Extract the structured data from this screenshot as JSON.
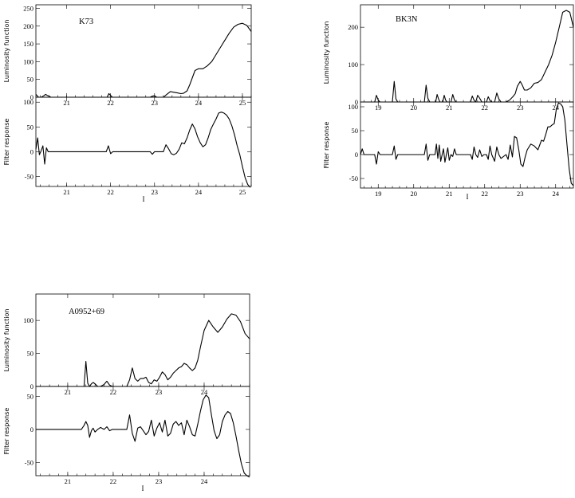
{
  "chart_data": [
    {
      "type": "line",
      "title": "K73",
      "top": {
        "ylabel": "Luminosity function",
        "xlim": [
          20.3,
          25.2
        ],
        "ylim": [
          0,
          260
        ],
        "xticks": [
          21,
          22,
          23,
          24,
          25
        ],
        "yticks": [
          0,
          50,
          100,
          150,
          200,
          250
        ],
        "x": [
          20.3,
          20.36,
          20.42,
          20.48,
          20.52,
          20.56,
          20.6,
          20.64,
          20.68,
          21.92,
          21.96,
          22.0,
          22.04,
          22.9,
          22.95,
          23.0,
          23.05,
          23.2,
          23.28,
          23.36,
          23.44,
          23.52,
          23.6,
          23.66,
          23.74,
          23.8,
          23.86,
          23.92,
          24.0,
          24.1,
          24.2,
          24.3,
          24.4,
          24.5,
          24.6,
          24.7,
          24.8,
          24.9,
          25.0,
          25.1,
          25.2
        ],
        "y": [
          8,
          0,
          0,
          4,
          8,
          5,
          3,
          0,
          0,
          0,
          10,
          5,
          0,
          0,
          3,
          4,
          0,
          0,
          8,
          16,
          14,
          12,
          10,
          11,
          18,
          35,
          55,
          75,
          80,
          80,
          88,
          100,
          120,
          140,
          160,
          180,
          197,
          205,
          208,
          202,
          185
        ]
      },
      "bottom": {
        "ylabel": "Filter response",
        "xlabel": "I",
        "xlim": [
          20.3,
          25.2
        ],
        "ylim": [
          -70,
          110
        ],
        "xticks": [
          21,
          22,
          23,
          24,
          25
        ],
        "yticks": [
          -50,
          0,
          50,
          100
        ],
        "x": [
          20.3,
          20.34,
          20.38,
          20.42,
          20.46,
          20.5,
          20.54,
          20.58,
          20.62,
          21.9,
          21.95,
          22.0,
          22.05,
          22.9,
          22.95,
          23.0,
          23.1,
          23.2,
          23.26,
          23.32,
          23.38,
          23.44,
          23.5,
          23.56,
          23.62,
          23.68,
          23.74,
          23.8,
          23.86,
          23.92,
          23.98,
          24.04,
          24.1,
          24.16,
          24.22,
          24.28,
          24.34,
          24.4,
          24.46,
          24.52,
          24.58,
          24.64,
          24.7,
          24.76,
          24.82,
          24.88,
          24.94,
          25.0,
          25.06,
          25.12,
          25.18
        ],
        "y": [
          5,
          28,
          -6,
          2,
          12,
          -25,
          8,
          0,
          0,
          0,
          12,
          -4,
          0,
          0,
          -5,
          0,
          0,
          0,
          14,
          6,
          -4,
          -6,
          -3,
          5,
          18,
          16,
          28,
          44,
          56,
          46,
          30,
          18,
          10,
          14,
          28,
          45,
          56,
          66,
          78,
          80,
          78,
          74,
          66,
          52,
          34,
          12,
          -6,
          -30,
          -52,
          -66,
          -72
        ]
      }
    },
    {
      "type": "line",
      "title": "BK3N",
      "top": {
        "ylabel": "Luminosity function",
        "xlim": [
          18.5,
          24.5
        ],
        "ylim": [
          0,
          260
        ],
        "xticks": [
          19,
          20,
          21,
          22,
          23,
          24
        ],
        "yticks": [
          0,
          100,
          200
        ],
        "x": [
          18.5,
          18.9,
          18.95,
          19.0,
          19.05,
          19.4,
          19.45,
          19.5,
          19.55,
          20.3,
          20.35,
          20.4,
          20.45,
          20.62,
          20.66,
          20.7,
          20.74,
          20.82,
          20.86,
          20.9,
          20.94,
          21.05,
          21.1,
          21.15,
          21.2,
          21.6,
          21.65,
          21.7,
          21.75,
          21.8,
          21.86,
          21.92,
          21.98,
          22.05,
          22.1,
          22.15,
          22.2,
          22.28,
          22.34,
          22.4,
          22.46,
          22.6,
          22.7,
          22.8,
          22.86,
          22.92,
          23.0,
          23.06,
          23.12,
          23.2,
          23.3,
          23.4,
          23.5,
          23.6,
          23.7,
          23.8,
          23.9,
          24.0,
          24.1,
          24.2,
          24.3,
          24.4,
          24.5
        ],
        "y": [
          0,
          0,
          18,
          5,
          0,
          0,
          55,
          8,
          0,
          0,
          45,
          10,
          0,
          0,
          20,
          8,
          0,
          0,
          18,
          5,
          0,
          0,
          20,
          5,
          0,
          0,
          16,
          5,
          0,
          18,
          10,
          0,
          0,
          0,
          14,
          4,
          0,
          0,
          24,
          8,
          0,
          0,
          5,
          15,
          22,
          42,
          55,
          45,
          32,
          32,
          38,
          50,
          52,
          60,
          80,
          100,
          125,
          160,
          200,
          240,
          245,
          240,
          200
        ]
      },
      "bottom": {
        "ylabel": "Filter response",
        "xlabel": "I",
        "xlim": [
          18.5,
          24.5
        ],
        "ylim": [
          -70,
          110
        ],
        "xticks": [
          19,
          20,
          21,
          22,
          23,
          24
        ],
        "yticks": [
          -50,
          0,
          50,
          100
        ],
        "x": [
          18.5,
          18.55,
          18.6,
          18.65,
          18.9,
          18.95,
          19.0,
          19.05,
          19.4,
          19.45,
          19.5,
          19.55,
          20.3,
          20.35,
          20.4,
          20.45,
          20.6,
          20.64,
          20.68,
          20.72,
          20.76,
          20.8,
          20.84,
          20.88,
          20.92,
          20.96,
          21.0,
          21.05,
          21.1,
          21.15,
          21.2,
          21.6,
          21.65,
          21.7,
          21.75,
          21.8,
          21.86,
          21.92,
          21.98,
          22.05,
          22.1,
          22.15,
          22.2,
          22.28,
          22.34,
          22.4,
          22.46,
          22.6,
          22.66,
          22.72,
          22.78,
          22.84,
          22.9,
          22.96,
          23.02,
          23.08,
          23.14,
          23.2,
          23.3,
          23.4,
          23.5,
          23.6,
          23.66,
          23.72,
          23.78,
          23.84,
          23.9,
          23.96,
          24.02,
          24.08,
          24.14,
          24.2,
          24.26,
          24.32,
          24.38,
          24.44,
          24.5
        ],
        "y": [
          0,
          12,
          0,
          0,
          0,
          -20,
          6,
          0,
          0,
          18,
          -10,
          0,
          0,
          22,
          -12,
          0,
          0,
          22,
          -8,
          20,
          -14,
          0,
          12,
          -16,
          0,
          14,
          -12,
          0,
          -4,
          12,
          0,
          0,
          -10,
          16,
          0,
          -6,
          10,
          -4,
          0,
          0,
          -10,
          18,
          0,
          -14,
          16,
          0,
          -8,
          0,
          -10,
          20,
          -5,
          38,
          35,
          10,
          -20,
          -25,
          -5,
          10,
          22,
          18,
          10,
          30,
          28,
          42,
          58,
          58,
          62,
          65,
          95,
          108,
          106,
          100,
          72,
          20,
          -30,
          -60,
          -65
        ]
      }
    },
    {
      "type": "line",
      "title": "A0952+69",
      "top": {
        "ylabel": "Luminosity function",
        "xlim": [
          20.3,
          25.0
        ],
        "ylim": [
          0,
          140
        ],
        "xticks": [
          21,
          22,
          23,
          24
        ],
        "yticks": [
          0,
          50,
          100
        ],
        "x": [
          20.3,
          21.36,
          21.4,
          21.44,
          21.48,
          21.52,
          21.56,
          21.6,
          21.66,
          21.72,
          21.8,
          21.86,
          21.92,
          21.98,
          22.3,
          22.36,
          22.42,
          22.48,
          22.54,
          22.6,
          22.66,
          22.72,
          22.78,
          22.84,
          22.9,
          22.96,
          23.02,
          23.08,
          23.14,
          23.2,
          23.26,
          23.32,
          23.38,
          23.44,
          23.5,
          23.56,
          23.62,
          23.68,
          23.74,
          23.8,
          23.86,
          23.92,
          24.0,
          24.1,
          24.2,
          24.3,
          24.4,
          24.5,
          24.6,
          24.7,
          24.8,
          24.9,
          25.0
        ],
        "y": [
          0,
          0,
          38,
          5,
          0,
          4,
          6,
          4,
          0,
          0,
          3,
          8,
          2,
          0,
          0,
          10,
          28,
          12,
          8,
          12,
          12,
          14,
          6,
          4,
          10,
          8,
          14,
          22,
          18,
          10,
          14,
          20,
          24,
          28,
          30,
          35,
          33,
          28,
          24,
          28,
          40,
          60,
          85,
          100,
          90,
          82,
          90,
          102,
          110,
          108,
          98,
          80,
          72
        ]
      },
      "bottom": {
        "ylabel": "Filter response",
        "xlabel": "I",
        "xlim": [
          20.3,
          25.0
        ],
        "ylim": [
          -70,
          65
        ],
        "xticks": [
          21,
          22,
          23,
          24
        ],
        "yticks": [
          -50,
          0,
          50
        ],
        "x": [
          20.3,
          21.3,
          21.36,
          21.4,
          21.44,
          21.48,
          21.52,
          21.56,
          21.6,
          21.66,
          21.72,
          21.8,
          21.86,
          21.92,
          21.98,
          22.3,
          22.36,
          22.42,
          22.48,
          22.54,
          22.6,
          22.66,
          22.72,
          22.78,
          22.84,
          22.9,
          22.96,
          23.02,
          23.08,
          23.14,
          23.2,
          23.26,
          23.32,
          23.38,
          23.44,
          23.5,
          23.56,
          23.62,
          23.68,
          23.74,
          23.8,
          23.86,
          23.92,
          23.98,
          24.04,
          24.1,
          24.16,
          24.22,
          24.28,
          24.34,
          24.4,
          24.46,
          24.52,
          24.58,
          24.64,
          24.7,
          24.76,
          24.82,
          24.88,
          24.94,
          25.0
        ],
        "y": [
          0,
          0,
          6,
          12,
          6,
          -12,
          -2,
          2,
          -4,
          0,
          3,
          0,
          4,
          -2,
          0,
          0,
          22,
          -6,
          -18,
          2,
          4,
          -2,
          -8,
          -3,
          14,
          -10,
          2,
          10,
          -4,
          14,
          -10,
          -6,
          8,
          12,
          6,
          10,
          -8,
          14,
          4,
          -8,
          -10,
          8,
          28,
          45,
          52,
          48,
          22,
          -2,
          -14,
          -8,
          12,
          22,
          27,
          24,
          10,
          -10,
          -32,
          -52,
          -66,
          -70,
          -72
        ]
      }
    }
  ]
}
